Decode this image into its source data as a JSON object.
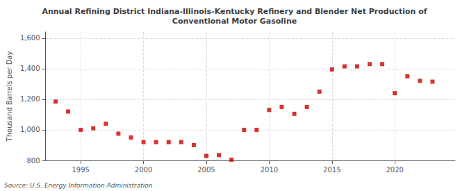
{
  "chart_data": {
    "type": "scatter",
    "title": "Annual Refining District Indiana-Illinois-Kentucky Refinery and Blender Net Production of\nConventional Motor Gasoline",
    "ylabel": "Thousand Barrels per Day",
    "annotation": "Source: U.S. Energy Information Administration",
    "x": [
      1993,
      1994,
      1995,
      1996,
      1997,
      1998,
      1999,
      2000,
      2001,
      2002,
      2003,
      2004,
      2005,
      2006,
      2007,
      2008,
      2009,
      2010,
      2011,
      2012,
      2013,
      2014,
      2015,
      2016,
      2017,
      2018,
      2019,
      2020,
      2021,
      2022,
      2023
    ],
    "values": [
      1185,
      1120,
      1000,
      1010,
      1040,
      975,
      950,
      920,
      920,
      920,
      920,
      900,
      830,
      835,
      805,
      1000,
      1000,
      1130,
      1150,
      1105,
      1150,
      1250,
      1395,
      1415,
      1415,
      1430,
      1430,
      1240,
      1350,
      1320,
      1315
    ],
    "color": "#cc0000",
    "marker": "square",
    "xlim": [
      1992.2,
      2024.8
    ],
    "xticks": [
      1995,
      2000,
      2005,
      2010,
      2015,
      2020
    ],
    "ylim": [
      800,
      1640
    ],
    "yticks": [
      800,
      {
        "value": 1000,
        "label": "1,000"
      },
      {
        "value": 1200,
        "label": "1,200"
      },
      {
        "value": 1400,
        "label": "1,400"
      },
      {
        "value": 1600,
        "label": "1,600"
      }
    ],
    "grid": true
  }
}
